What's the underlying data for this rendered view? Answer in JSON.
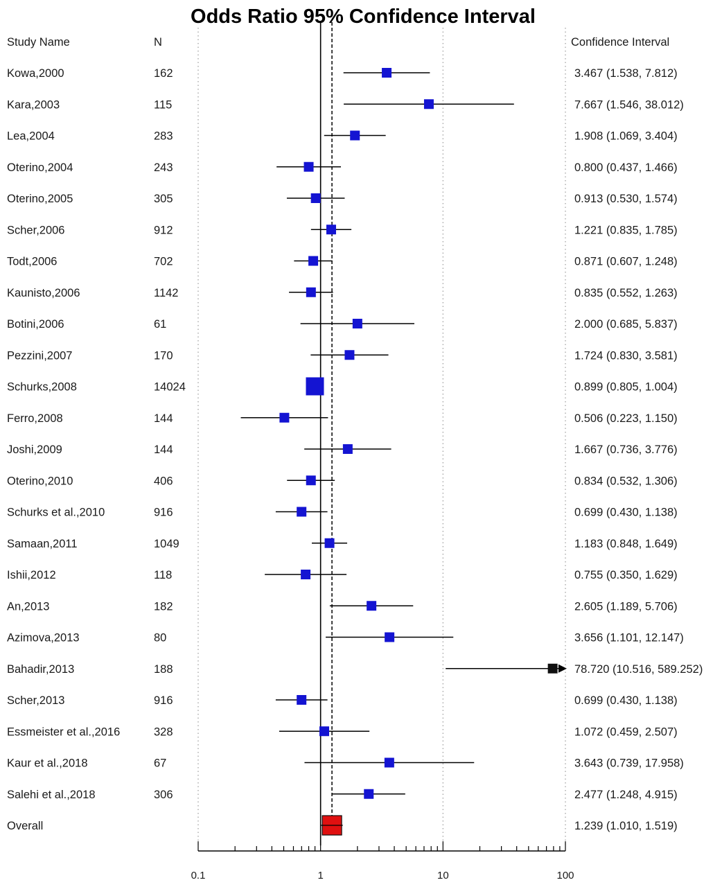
{
  "chart_data": {
    "type": "forest",
    "title": "Odds Ratio 95% Confidence Interval",
    "columns": {
      "study": "Study Name",
      "n": "N",
      "ci": "Confidence Interval"
    },
    "x_scale": "log",
    "xlim": [
      0.1,
      100
    ],
    "x_ticks": [
      "0.1",
      "1",
      "10",
      "100"
    ],
    "reference_line": 1,
    "pooled_line": 1.239,
    "grid": "dotted vertical at 0.1 and 100",
    "studies": [
      {
        "name": "Kowa,2000",
        "n": "162",
        "or": 3.467,
        "lo": 1.538,
        "hi": 7.812,
        "ci_text": "3.467 (1.538, 7.812)"
      },
      {
        "name": "Kara,2003",
        "n": "115",
        "or": 7.667,
        "lo": 1.546,
        "hi": 38.012,
        "ci_text": "7.667 (1.546, 38.012)"
      },
      {
        "name": "Lea,2004",
        "n": "283",
        "or": 1.908,
        "lo": 1.069,
        "hi": 3.404,
        "ci_text": "1.908 (1.069, 3.404)"
      },
      {
        "name": "Oterino,2004",
        "n": "243",
        "or": 0.8,
        "lo": 0.437,
        "hi": 1.466,
        "ci_text": "0.800 (0.437, 1.466)"
      },
      {
        "name": "Oterino,2005",
        "n": "305",
        "or": 0.913,
        "lo": 0.53,
        "hi": 1.574,
        "ci_text": "0.913 (0.530, 1.574)"
      },
      {
        "name": "Scher,2006",
        "n": "912",
        "or": 1.221,
        "lo": 0.835,
        "hi": 1.785,
        "ci_text": "1.221 (0.835, 1.785)"
      },
      {
        "name": "Todt,2006",
        "n": "702",
        "or": 0.871,
        "lo": 0.607,
        "hi": 1.248,
        "ci_text": "0.871 (0.607, 1.248)"
      },
      {
        "name": "Kaunisto,2006",
        "n": "1142",
        "or": 0.835,
        "lo": 0.552,
        "hi": 1.263,
        "ci_text": "0.835 (0.552, 1.263)"
      },
      {
        "name": "Botini,2006",
        "n": "61",
        "or": 2.0,
        "lo": 0.685,
        "hi": 5.837,
        "ci_text": "2.000 (0.685, 5.837)"
      },
      {
        "name": "Pezzini,2007",
        "n": "170",
        "or": 1.724,
        "lo": 0.83,
        "hi": 3.581,
        "ci_text": "1.724 (0.830, 3.581)"
      },
      {
        "name": "Schurks,2008",
        "n": "14024",
        "or": 0.899,
        "lo": 0.805,
        "hi": 1.004,
        "ci_text": "0.899 (0.805, 1.004)"
      },
      {
        "name": "Ferro,2008",
        "n": "144",
        "or": 0.506,
        "lo": 0.223,
        "hi": 1.15,
        "ci_text": "0.506 (0.223, 1.150)"
      },
      {
        "name": "Joshi,2009",
        "n": "144",
        "or": 1.667,
        "lo": 0.736,
        "hi": 3.776,
        "ci_text": "1.667 (0.736, 3.776)"
      },
      {
        "name": "Oterino,2010",
        "n": "406",
        "or": 0.834,
        "lo": 0.532,
        "hi": 1.306,
        "ci_text": "0.834 (0.532, 1.306)"
      },
      {
        "name": "Schurks et al.,2010",
        "n": "916",
        "or": 0.699,
        "lo": 0.43,
        "hi": 1.138,
        "ci_text": "0.699 (0.430, 1.138)"
      },
      {
        "name": "Samaan,2011",
        "n": "1049",
        "or": 1.183,
        "lo": 0.848,
        "hi": 1.649,
        "ci_text": "1.183 (0.848, 1.649)"
      },
      {
        "name": "Ishii,2012",
        "n": "118",
        "or": 0.755,
        "lo": 0.35,
        "hi": 1.629,
        "ci_text": "0.755 (0.350, 1.629)"
      },
      {
        "name": "An,2013",
        "n": "182",
        "or": 2.605,
        "lo": 1.189,
        "hi": 5.706,
        "ci_text": "2.605 (1.189, 5.706)"
      },
      {
        "name": "Azimova,2013",
        "n": "80",
        "or": 3.656,
        "lo": 1.101,
        "hi": 12.147,
        "ci_text": "3.656 (1.101, 12.147)"
      },
      {
        "name": "Bahadir,2013",
        "n": "188",
        "or": 78.72,
        "lo": 10.516,
        "hi": 589.252,
        "ci_text": "78.720 (10.516, 589.252)"
      },
      {
        "name": "Scher,2013",
        "n": "916",
        "or": 0.699,
        "lo": 0.43,
        "hi": 1.138,
        "ci_text": "0.699 (0.430, 1.138)"
      },
      {
        "name": "Essmeister et al.,2016",
        "n": "328",
        "or": 1.072,
        "lo": 0.459,
        "hi": 2.507,
        "ci_text": "1.072 (0.459, 2.507)"
      },
      {
        "name": "Kaur et al.,2018",
        "n": "67",
        "or": 3.643,
        "lo": 0.739,
        "hi": 17.958,
        "ci_text": "3.643 (0.739, 17.958)"
      },
      {
        "name": "Salehi et al.,2018",
        "n": "306",
        "or": 2.477,
        "lo": 1.248,
        "hi": 4.915,
        "ci_text": "2.477 (1.248, 4.915)"
      }
    ],
    "overall": {
      "name": "Overall",
      "n": "",
      "or": 1.239,
      "lo": 1.01,
      "hi": 1.519,
      "ci_text": "1.239 (1.010, 1.519)"
    },
    "colors": {
      "study_marker": "#1414d2",
      "overall_marker": "#e01010",
      "arrow": "#000000",
      "line": "#000000",
      "grid": "#9a9a9a"
    }
  }
}
